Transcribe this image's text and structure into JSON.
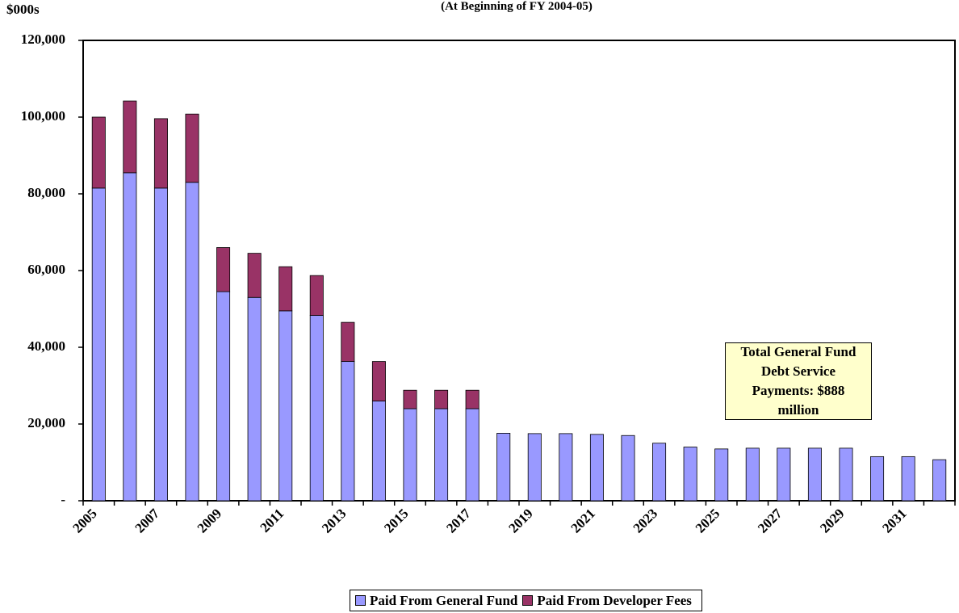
{
  "chart_data": {
    "type": "stacked_bar",
    "title": "(At Beginning of FY 2004-05)",
    "y_label": "$000s",
    "categories": [
      "2005",
      null,
      "2007",
      null,
      "2009",
      null,
      "2011",
      null,
      "2013",
      null,
      "2015",
      null,
      "2017",
      null,
      "2019",
      null,
      "2021",
      null,
      "2023",
      null,
      "2025",
      null,
      "2027",
      null,
      "2029",
      null,
      "2031",
      null
    ],
    "series": [
      {
        "name": "Paid From General Fund",
        "color": "#9999ff",
        "values": [
          81500,
          85500,
          81500,
          83000,
          54500,
          53000,
          49500,
          48300,
          36300,
          26000,
          24000,
          24000,
          24000,
          17600,
          17500,
          17500,
          17300,
          17000,
          15000,
          14000,
          13500,
          13700,
          13700,
          13700,
          13700,
          11500,
          11500,
          10700
        ]
      },
      {
        "name": "Paid From Developer Fees",
        "color": "#993366",
        "values": [
          18500,
          18700,
          18100,
          17800,
          11500,
          11500,
          11500,
          10400,
          10200,
          10300,
          4800,
          4800,
          4800,
          0,
          0,
          0,
          0,
          0,
          0,
          0,
          0,
          0,
          0,
          0,
          0,
          0,
          0,
          0
        ]
      }
    ],
    "ylim": [
      0,
      120000
    ],
    "yticks": [
      {
        "value": 0,
        "label": "-"
      },
      {
        "value": 20000,
        "label": "20,000"
      },
      {
        "value": 40000,
        "label": "40,000"
      },
      {
        "value": 60000,
        "label": "60,000"
      },
      {
        "value": 80000,
        "label": "80,000"
      },
      {
        "value": 100000,
        "label": "100,000"
      },
      {
        "value": 120000,
        "label": "120,000"
      }
    ],
    "annotation": "Total General Fund Debt Service Payments: $888 million",
    "legend": "bottom"
  }
}
